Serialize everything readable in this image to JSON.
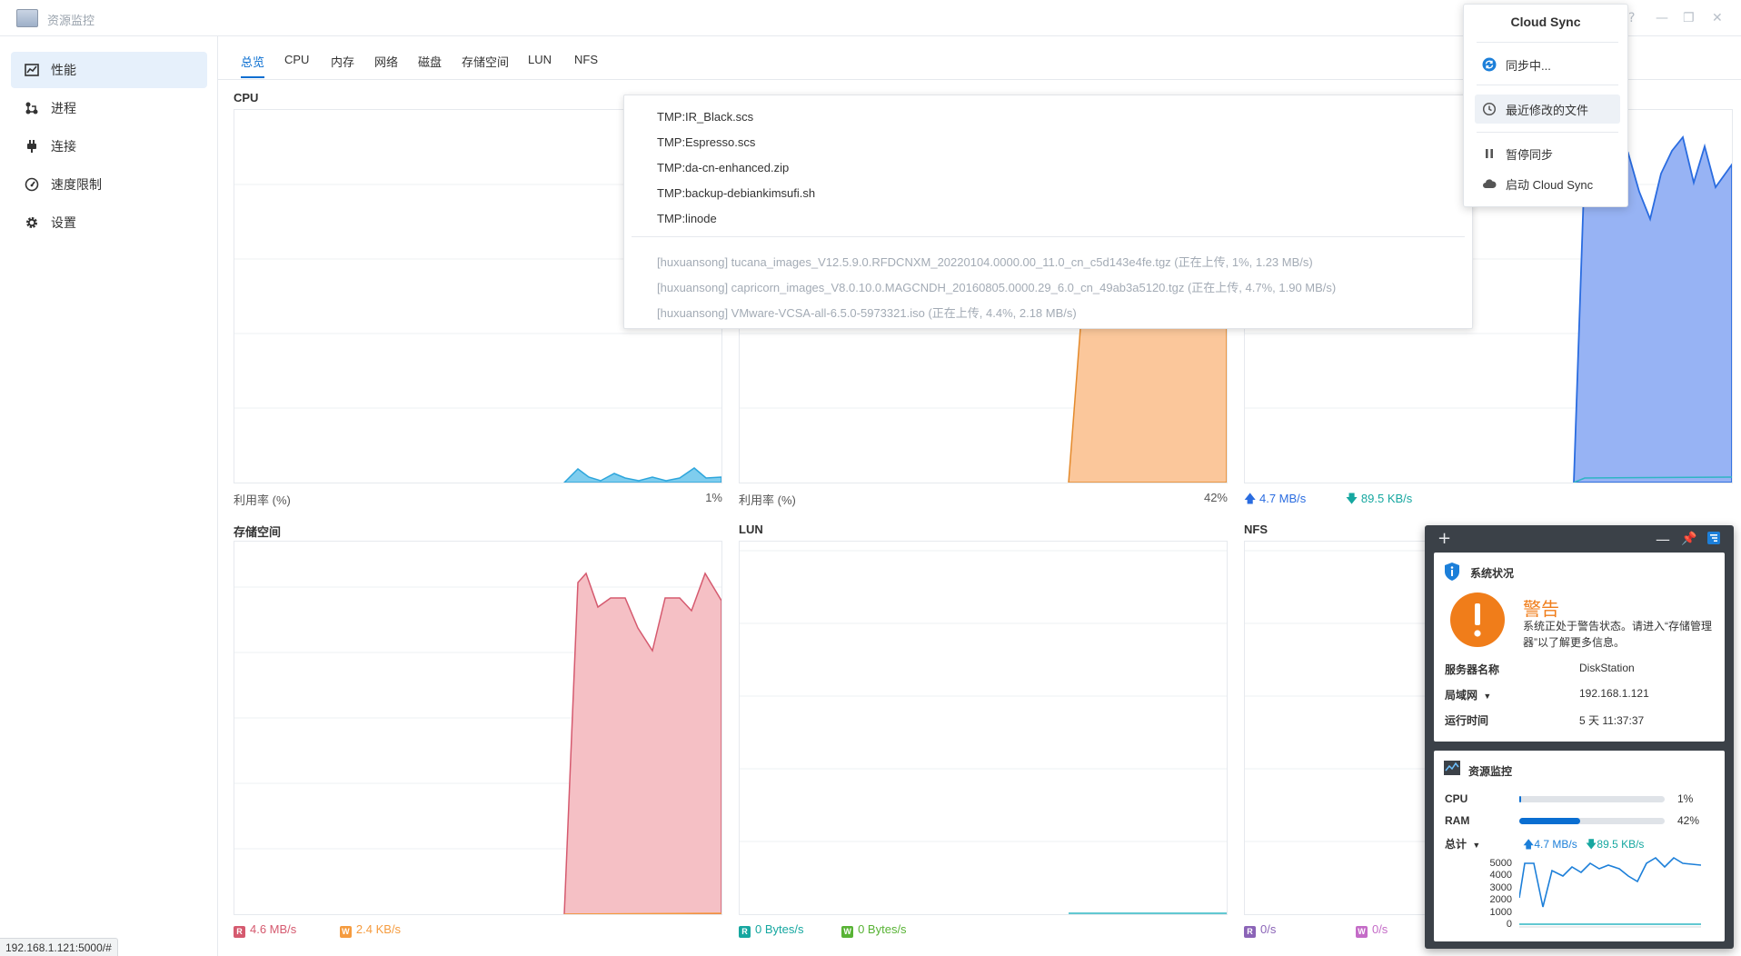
{
  "window": {
    "title": "资源监控"
  },
  "sidebar": {
    "items": [
      {
        "label": "性能",
        "icon": "performance-chart-icon"
      },
      {
        "label": "进程",
        "icon": "process-icon"
      },
      {
        "label": "连接",
        "icon": "plug-icon"
      },
      {
        "label": "速度限制",
        "icon": "speedometer-icon"
      },
      {
        "label": "设置",
        "icon": "gear-icon"
      }
    ]
  },
  "tabs": [
    "总览",
    "CPU",
    "内存",
    "网络",
    "磁盘",
    "存储空间",
    "LUN",
    "NFS"
  ],
  "panels": {
    "cpu": {
      "title": "CPU",
      "foot_left": "利用率 (%)",
      "foot_right": "1%"
    },
    "memory": {
      "foot_left": "利用率 (%)",
      "foot_right": "42%"
    },
    "network": {
      "up": "4.7 MB/s",
      "down": "89.5 KB/s"
    },
    "volume": {
      "title": "存储空间",
      "read": "4.6 MB/s",
      "write": "2.4 KB/s",
      "r": "R",
      "w": "W"
    },
    "lun": {
      "title": "LUN",
      "read": "0 Bytes/s",
      "write": "0 Bytes/s",
      "r": "R",
      "w": "W"
    },
    "nfs": {
      "title": "NFS",
      "read": "0/s",
      "write": "0/s",
      "r": "R",
      "w": "W"
    }
  },
  "recent_files": {
    "items": [
      "TMP:IR_Black.scs",
      "TMP:Espresso.scs",
      "TMP:da-cn-enhanced.zip",
      "TMP:backup-debiankimsufi.sh",
      "TMP:linode"
    ],
    "uploading": [
      "[huxuansong] tucana_images_V12.5.9.0.RFDCNXM_20220104.0000.00_11.0_cn_c5d143e4fe.tgz (正在上传, 1%, 1.23 MB/s)",
      "[huxuansong] capricorn_images_V8.0.10.0.MAGCNDH_20160805.0000.29_6.0_cn_49ab3a5120.tgz (正在上传, 4.7%, 1.90 MB/s)",
      "[huxuansong] VMware-VCSA-all-6.5.0-5973321.iso (正在上传, 4.4%, 2.18 MB/s)"
    ]
  },
  "cloud_sync": {
    "title": "Cloud Sync",
    "syncing": "同步中...",
    "recent": "最近修改的文件",
    "pause": "暂停同步",
    "launch": "启动 Cloud Sync"
  },
  "widget": {
    "system_status": {
      "title": "系统状况",
      "warning_title": "警告",
      "warning_text": "系统正处于警告状态。请进入“存储管理器”以了解更多信息。",
      "server_name_label": "服务器名称",
      "server_name": "DiskStation",
      "lan_label": "局域网",
      "lan_ip": "192.168.1.121",
      "uptime_label": "运行时间",
      "uptime": "5 天 11:37:37"
    },
    "resource_monitor": {
      "title": "资源监控",
      "cpu_label": "CPU",
      "cpu_value": "1%",
      "cpu_fraction": 0.01,
      "ram_label": "RAM",
      "ram_value": "42%",
      "ram_fraction": 0.42,
      "total_label": "总计",
      "up": "4.7 MB/s",
      "down": "89.5 KB/s",
      "y_ticks": [
        "5000",
        "4000",
        "3000",
        "2000",
        "1000",
        "0"
      ]
    }
  },
  "status_url": "192.168.1.121:5000/#",
  "colors": {
    "accent": "#0a6ed1",
    "cpu": "#3fb5e5",
    "memory": "#f7a254",
    "network": "#6d9af0",
    "volume": "#e06a7e",
    "warning": "#f07d1a"
  }
}
